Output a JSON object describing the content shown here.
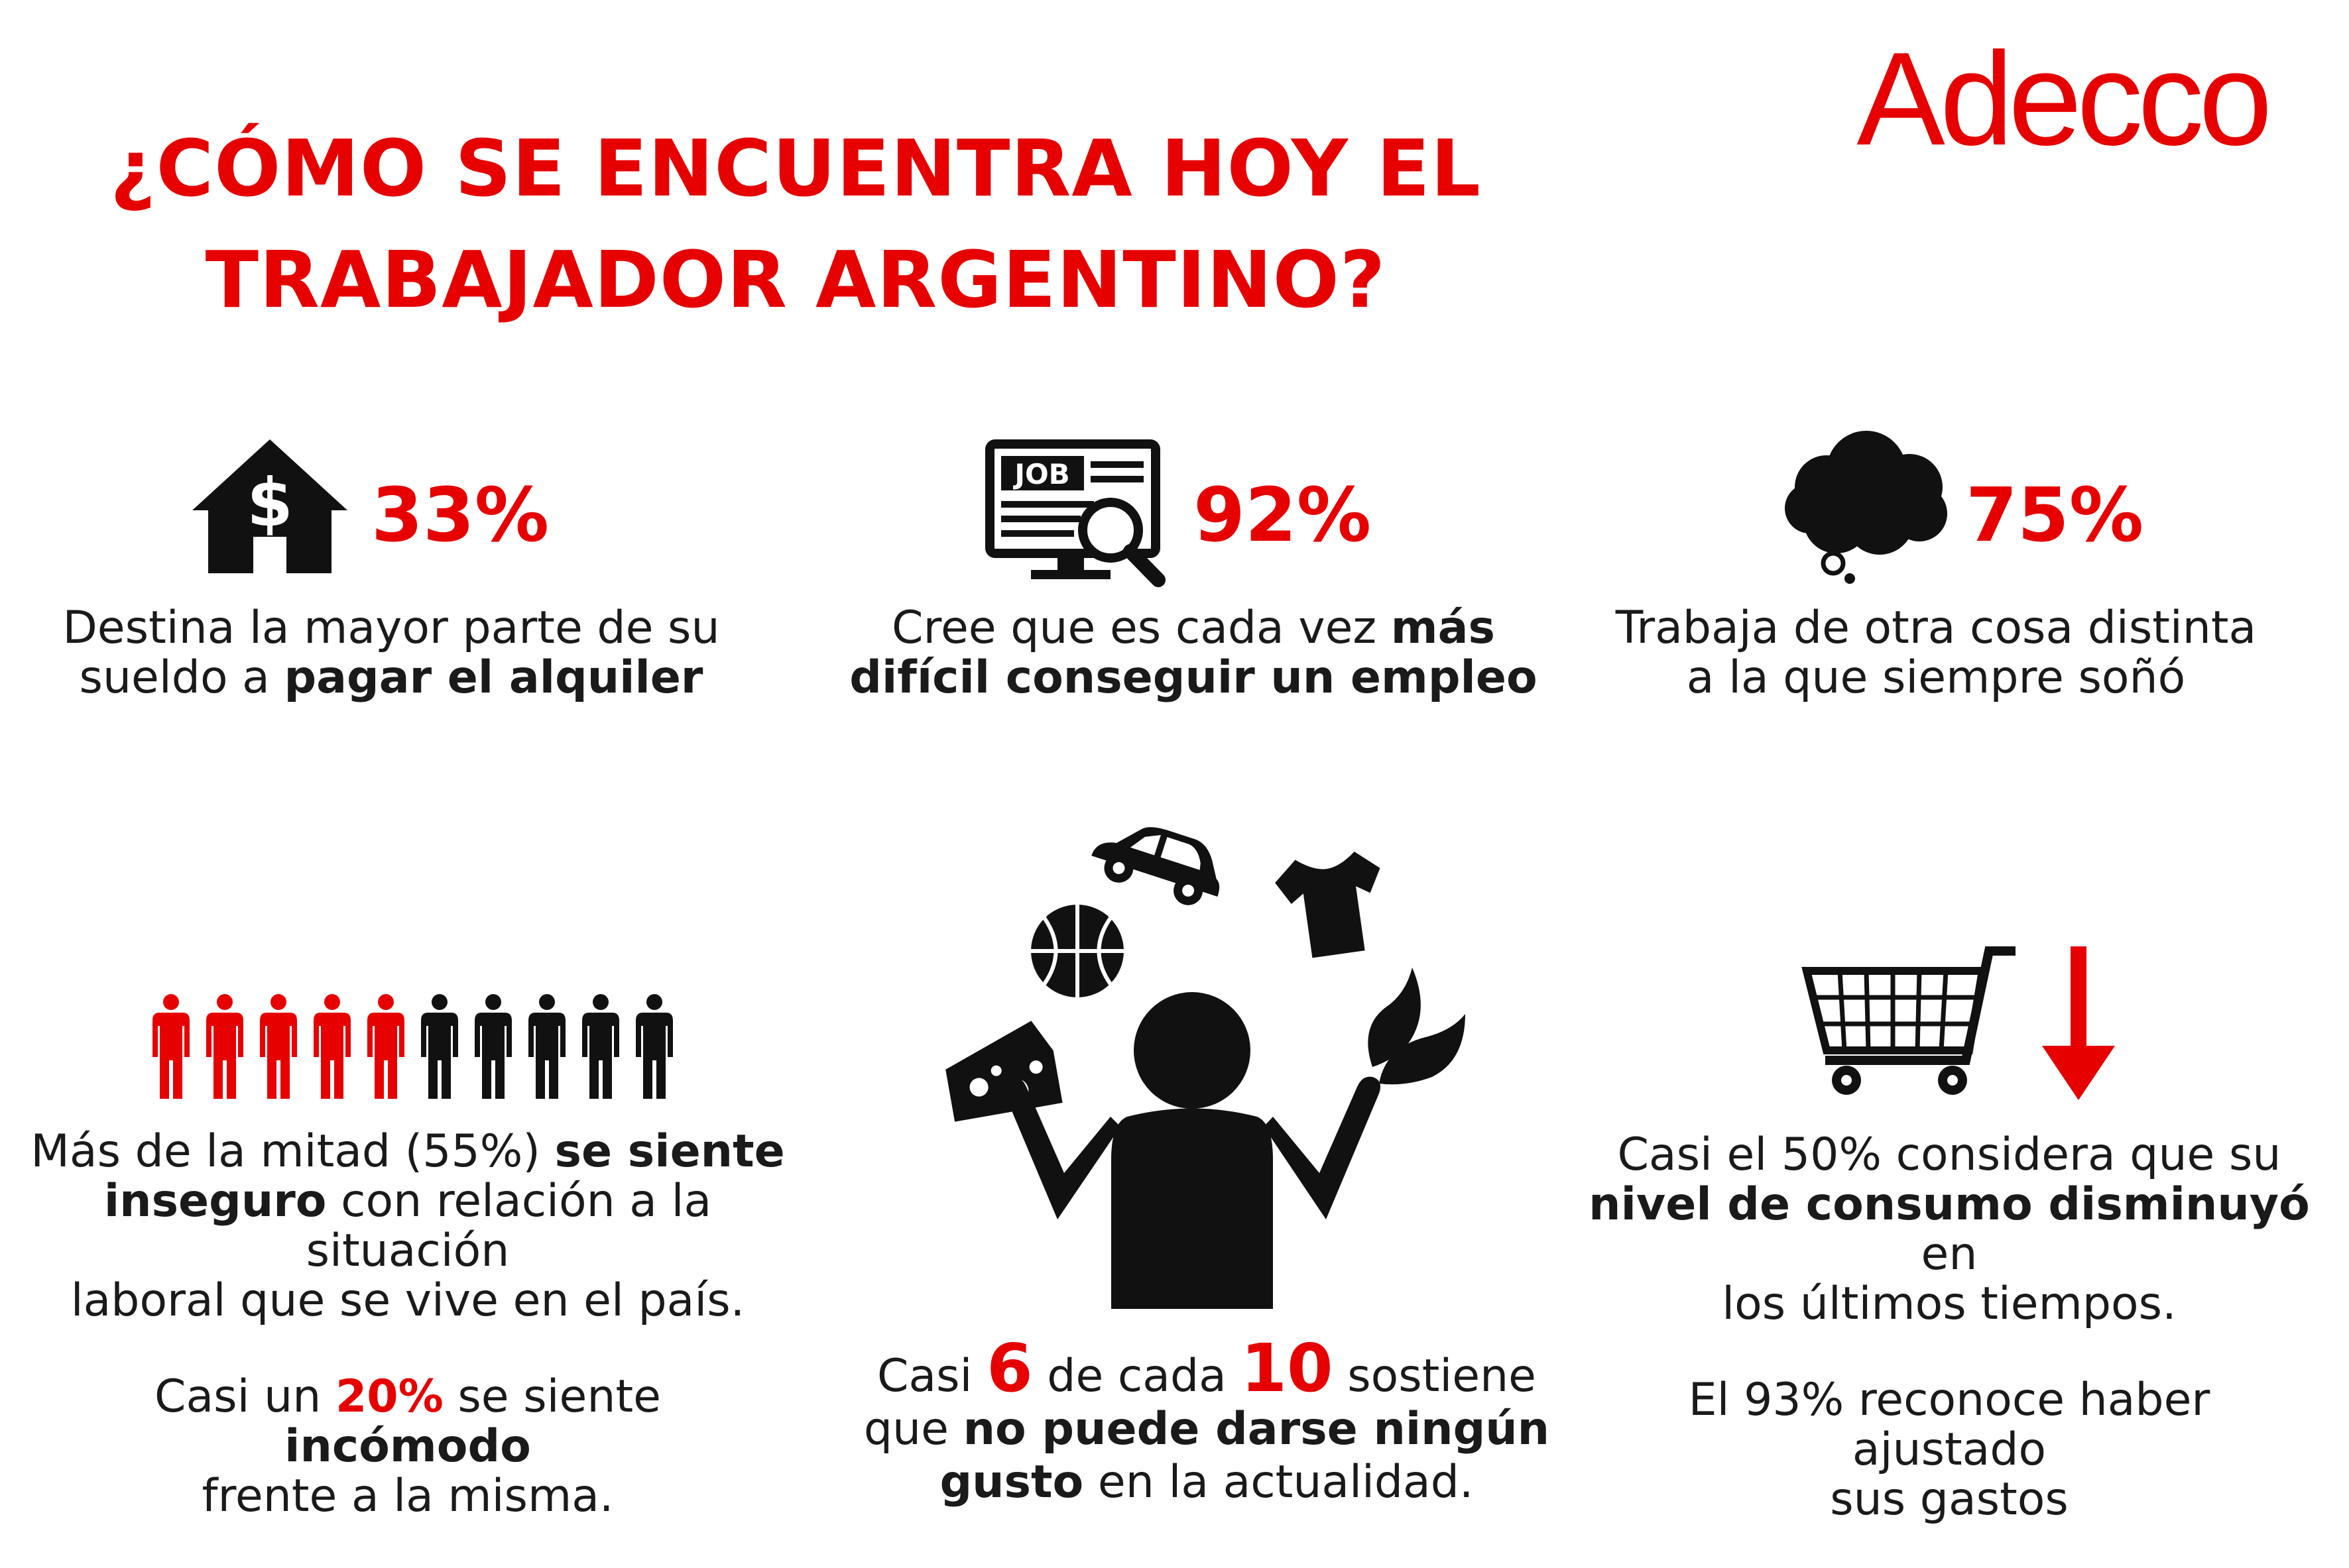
{
  "brand": {
    "logo_text": "Adecco",
    "color": "#e60000"
  },
  "title": {
    "line1": "¿CÓMO SE ENCUENTRA HOY EL",
    "line2": "TRABAJADOR ARGENTINO?"
  },
  "stats": {
    "rent": {
      "icon": "house-dollar-icon",
      "value": "33%",
      "text_a": "Destina la mayor parte de su",
      "text_b": "sueldo a",
      "text_bold": "pagar el alquiler"
    },
    "job": {
      "icon": "job-search-icon",
      "value": "92%",
      "text_a": "Cree que es cada vez",
      "text_bold_a": "más",
      "text_bold_b": "difícil conseguir un empleo"
    },
    "dream": {
      "icon": "thought-cloud-icon",
      "value": "75%",
      "text_a": "Trabaja de otra cosa distinta",
      "text_b": "a la que siempre soñó"
    },
    "insecure": {
      "icon": "people-icon",
      "people_total": 10,
      "people_highlighted": 5,
      "l1a": "Más de la mitad (55%)",
      "l1b": "se siente",
      "l2a": "inseguro",
      "l2b": "con relación a la situación",
      "l3": "laboral que se vive en el país.",
      "l4a": "Casi un",
      "l4b": "20%",
      "l4c": "se siente",
      "l4d": "incómodo",
      "l5": "frente a la misma."
    },
    "treats": {
      "icon": "juggling-person-icon",
      "l1a": "Casi",
      "num_a": "6",
      "l1b": "de cada",
      "num_b": "10",
      "l1c": "sostiene",
      "l2a": "que",
      "l2b": "no puede darse ningún",
      "l3a": "gusto",
      "l3b": "en la actualidad."
    },
    "consumption": {
      "icon": "shopping-cart-icon",
      "l1": "Casi el 50% considera que su",
      "l2a": "nivel de consumo disminuyó",
      "l2b": "en",
      "l3": "los últimos tiempos.",
      "l4": "El 93% reconoce haber ajustado",
      "l5": "sus gastos"
    }
  }
}
